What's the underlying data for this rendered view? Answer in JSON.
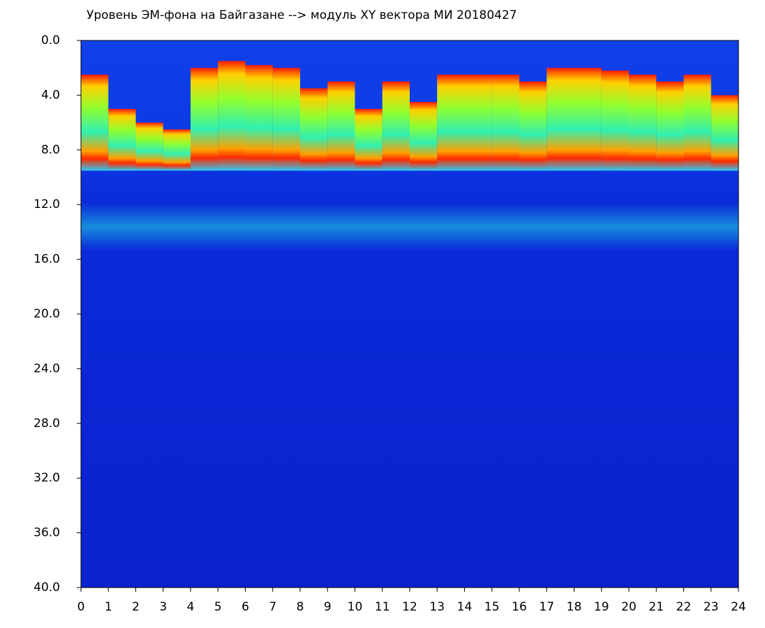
{
  "chart_data": {
    "type": "spectrogram",
    "title": "Уровень ЭМ-фона на Байгазане  -->  модуль XY вектора МИ  20180427",
    "x": [
      0,
      1,
      2,
      3,
      4,
      5,
      6,
      7,
      8,
      9,
      10,
      11,
      12,
      13,
      14,
      15,
      16,
      17,
      18,
      19,
      20,
      21,
      22,
      23
    ],
    "values": [
      2.5,
      5,
      6,
      6.5,
      2,
      1.5,
      1.8,
      2,
      3.5,
      3,
      5,
      3,
      4.5,
      2.5,
      2.5,
      2.5,
      3,
      2,
      2,
      2.2,
      2.5,
      3,
      2.5,
      4
    ],
    "xlim": [
      0,
      24
    ],
    "xticks": [
      0,
      1,
      2,
      3,
      4,
      5,
      6,
      7,
      8,
      9,
      10,
      11,
      12,
      13,
      14,
      15,
      16,
      17,
      18,
      19,
      20,
      21,
      22,
      23,
      24
    ],
    "ylim": [
      0,
      40
    ],
    "yticks": [
      {
        "value": 0,
        "label": "0.0"
      },
      {
        "value": 4,
        "label": "4.0"
      },
      {
        "value": 8,
        "label": "8.0"
      },
      {
        "value": 12,
        "label": "12.0"
      },
      {
        "value": 16,
        "label": "16.0"
      },
      {
        "value": 20,
        "label": "20.0"
      },
      {
        "value": 24,
        "label": "24.0"
      },
      {
        "value": 28,
        "label": "28.0"
      },
      {
        "value": 32,
        "label": "32.0"
      },
      {
        "value": 36,
        "label": "36.0"
      },
      {
        "value": 40,
        "label": "40.0"
      }
    ],
    "y_inverted": true
  }
}
